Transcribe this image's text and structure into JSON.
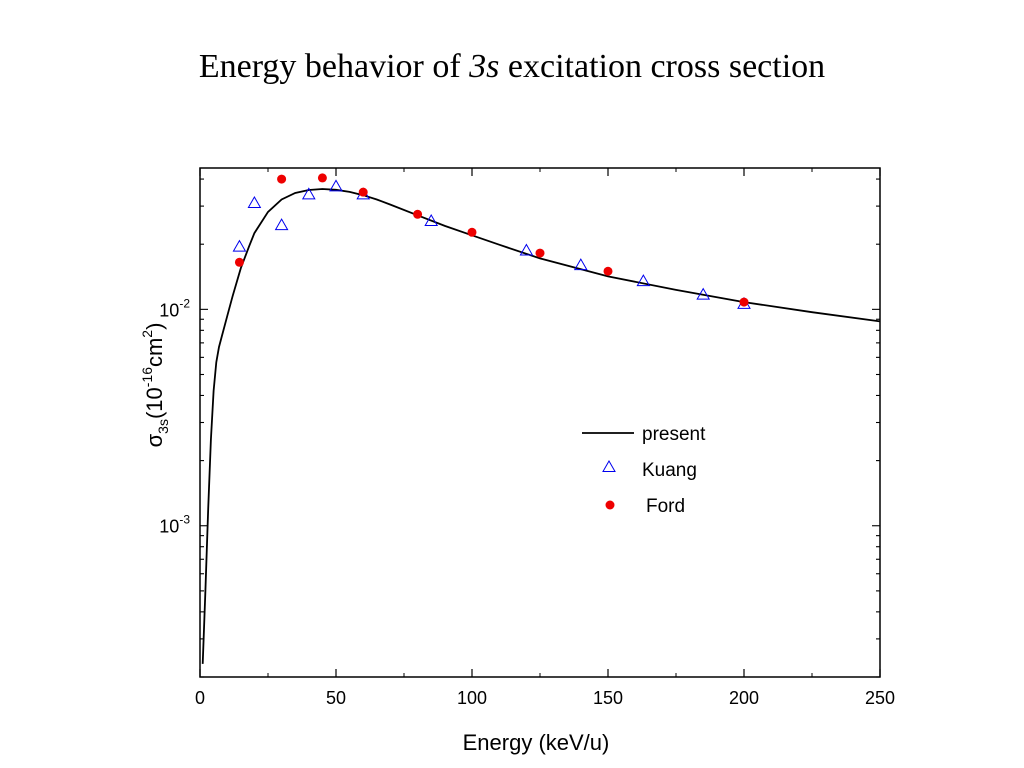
{
  "page": {
    "title_prefix": "Energy behavior of ",
    "title_italic": "3s",
    "title_suffix": " excitation cross section"
  },
  "chart_data": {
    "type": "scatter",
    "xlabel": "Energy (keV/u)",
    "ylabel": {
      "symbol": "σ",
      "symbol_sub": "3s",
      "unit_open": "(10",
      "unit_exp": "-16",
      "unit_mid": "cm",
      "unit_pow": "2",
      "unit_close": ")"
    },
    "xlim": [
      0,
      250
    ],
    "xticks": [
      0,
      50,
      100,
      150,
      200,
      250
    ],
    "xtick_labels": [
      "0",
      "50",
      "100",
      "150",
      "200",
      "250"
    ],
    "yscale": "log",
    "ylim": [
      0.0002,
      0.045
    ],
    "yticks": [
      {
        "value": 0.01,
        "base": "10",
        "exp": "-2"
      },
      {
        "value": 0.001,
        "base": "10",
        "exp": "-3"
      }
    ],
    "legend_position": "center-right",
    "series": [
      {
        "name": "present",
        "kind": "line",
        "color": "#000000",
        "x": [
          1,
          2,
          3,
          4,
          5,
          6,
          7,
          8,
          10,
          12,
          15,
          18,
          20,
          25,
          30,
          35,
          40,
          45,
          50,
          55,
          60,
          65,
          70,
          80,
          90,
          100,
          110,
          125,
          150,
          175,
          200,
          225,
          250
        ],
        "y": [
          0.00023,
          0.0005,
          0.0012,
          0.0025,
          0.0042,
          0.0057,
          0.0067,
          0.0075,
          0.0093,
          0.0115,
          0.0155,
          0.0195,
          0.0225,
          0.0282,
          0.0322,
          0.0345,
          0.0356,
          0.036,
          0.0357,
          0.0349,
          0.0337,
          0.0322,
          0.0305,
          0.0272,
          0.0243,
          0.022,
          0.0199,
          0.0172,
          0.0142,
          0.0123,
          0.0108,
          0.0097,
          0.0088
        ]
      },
      {
        "name": "Kuang",
        "kind": "scatter",
        "marker": "triangle-open",
        "color": "#0000ee",
        "x": [
          14.5,
          20,
          30,
          40,
          50,
          60,
          85,
          120,
          140,
          163,
          185,
          200
        ],
        "y": [
          0.0195,
          0.031,
          0.0245,
          0.034,
          0.037,
          0.034,
          0.0256,
          0.0187,
          0.016,
          0.0135,
          0.0117,
          0.0106
        ]
      },
      {
        "name": "Ford",
        "kind": "scatter",
        "marker": "circle-filled",
        "color": "#ee0000",
        "x": [
          14.5,
          30,
          45,
          60,
          80,
          100,
          125,
          150,
          200
        ],
        "y": [
          0.0165,
          0.04,
          0.0405,
          0.0348,
          0.0275,
          0.0227,
          0.0182,
          0.015,
          0.0108
        ]
      }
    ]
  }
}
